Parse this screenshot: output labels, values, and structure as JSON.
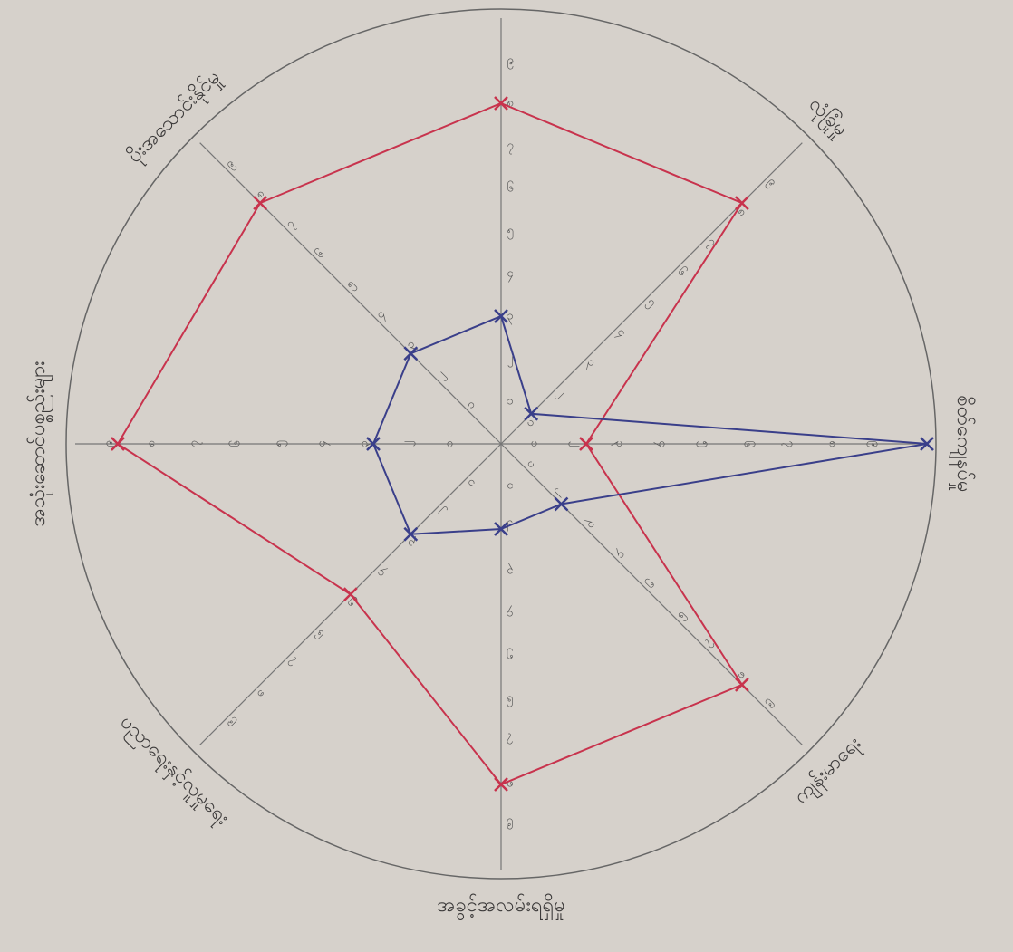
{
  "chart_data": {
    "type": "radar",
    "categories": [
      null,
      "လုံခြုံမှု",
      "စိတ်ကျေနပ်မှု",
      "ကျန်းမာရေး",
      "အခွင့်အလမ်းရရှိမှု",
      "ပညာရေးနှင့်လူမှုရေး",
      "အသုံးဆောင်ပစ္စည်းများ",
      "ပိုးအသောင်းနိုင်မှု"
    ],
    "series": [
      {
        "color": "#c8334d",
        "values": [
          8,
          8,
          2,
          8,
          8,
          5,
          9,
          8
        ]
      },
      {
        "color": "#3a3f8a",
        "values": [
          3,
          1,
          10,
          2,
          2,
          3,
          3,
          3
        ]
      }
    ],
    "ylim": [
      0,
      10
    ],
    "yticks": [
      {
        "value": 1,
        "label": "၁"
      },
      {
        "value": 2,
        "label": "၂"
      },
      {
        "value": 3,
        "label": "၃"
      },
      {
        "value": 4,
        "label": "၄"
      },
      {
        "value": 5,
        "label": "၅"
      },
      {
        "value": 6,
        "label": "၆"
      },
      {
        "value": 7,
        "label": "၇"
      },
      {
        "value": 8,
        "label": "၈"
      },
      {
        "value": 9,
        "label": "၉"
      }
    ]
  }
}
